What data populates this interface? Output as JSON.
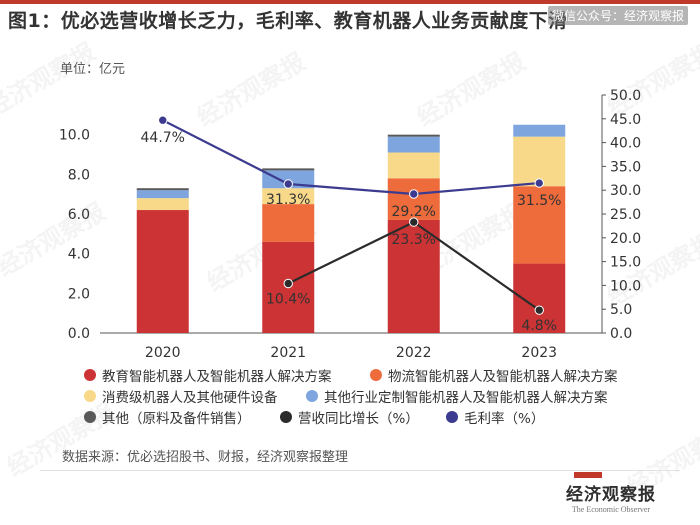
{
  "header": {
    "title": "图1：优必选营收增长乏力，毛利率、教育机器人业务贡献度下滑",
    "wechat": "微信公众号：经济观察报",
    "unit": "单位：亿元"
  },
  "chart_data": {
    "type": "bar",
    "stacked": true,
    "categories": [
      "2020",
      "2021",
      "2022",
      "2023"
    ],
    "left_axis": {
      "min": 0,
      "max": 12,
      "ticks": [
        0,
        2,
        4,
        6,
        8,
        10
      ],
      "tick_labels": [
        "0.0",
        "2.0",
        "4.0",
        "6.0",
        "8.0",
        "10.0"
      ]
    },
    "right_axis": {
      "min": 0,
      "max": 50,
      "ticks": [
        0,
        5,
        10,
        15,
        20,
        25,
        30,
        35,
        40,
        45,
        50
      ],
      "tick_labels": [
        "0.0",
        "5.0",
        "10.0",
        "15.0",
        "20.0",
        "25.0",
        "30.0",
        "35.0",
        "40.0",
        "45.0",
        "50.0"
      ]
    },
    "series": [
      {
        "name": "教育智能机器人及智能机器人解决方案",
        "color": "#cc3334",
        "values": [
          6.2,
          4.6,
          5.7,
          3.5
        ]
      },
      {
        "name": "物流智能机器人及智能机器人解决方案",
        "color": "#ee6b3b",
        "values": [
          0.0,
          1.9,
          2.1,
          3.9
        ]
      },
      {
        "name": "消费级机器人及其他硬件设备",
        "color": "#f8d98a",
        "values": [
          0.6,
          0.8,
          1.3,
          2.5
        ]
      },
      {
        "name": "其他行业定制智能机器人及智能机器人解决方案",
        "color": "#7fa5de",
        "values": [
          0.4,
          0.9,
          0.8,
          0.6
        ]
      },
      {
        "name": "其他（原料及备件销售）",
        "color": "#595959",
        "values": [
          0.1,
          0.1,
          0.1,
          0.0
        ]
      }
    ],
    "lines": [
      {
        "name": "营收同比增长（%）",
        "color": "#2b2b2b",
        "categories": [
          "2021",
          "2022",
          "2023"
        ],
        "values": [
          10.4,
          23.3,
          4.8
        ],
        "labels": [
          "10.4%",
          "23.3%",
          "4.8%"
        ]
      },
      {
        "name": "毛利率（%）",
        "color": "#3c3b8f",
        "categories": [
          "2020",
          "2021",
          "2022",
          "2023"
        ],
        "values": [
          44.7,
          31.3,
          29.2,
          31.5
        ],
        "labels": [
          "44.7%",
          "31.3%",
          "29.2%",
          "31.5%"
        ]
      }
    ]
  },
  "legend": {
    "items": [
      {
        "label": "教育智能机器人及智能机器人解决方案",
        "color": "#cc3334"
      },
      {
        "label": "物流智能机器人及智能机器人解决方案",
        "color": "#ee6b3b"
      },
      {
        "label": "消费级机器人及其他硬件设备",
        "color": "#f8d98a"
      },
      {
        "label": "其他行业定制智能机器人及智能机器人解决方案",
        "color": "#7fa5de"
      },
      {
        "label": "其他（原料及备件销售）",
        "color": "#595959"
      },
      {
        "label": "营收同比增长（%）",
        "color": "#2b2b2b"
      },
      {
        "label": "毛利率（%）",
        "color": "#3c3b8f"
      }
    ]
  },
  "source": "数据来源：优必选招股书、财报，经济观察报整理",
  "footer": {
    "brand": "经济观察报",
    "english": "The Economic Observer"
  },
  "watermark": "经济观察报"
}
